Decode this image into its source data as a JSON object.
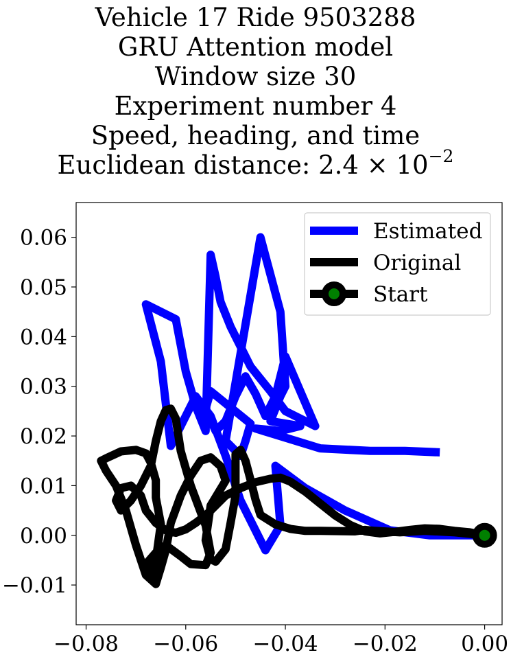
{
  "title_lines": [
    "Vehicle 17 Ride 9503288",
    "GRU Attention model",
    "Window size 30",
    "Experiment number 4",
    "Speed, heading, and time",
    "Euclidean distance: 2.4 × 10"
  ],
  "title_exponent": "−2",
  "chart_data": {
    "type": "line",
    "xlim": [
      -0.082,
      0.0035
    ],
    "ylim": [
      -0.018,
      0.067
    ],
    "xticks": [
      -0.08,
      -0.06,
      -0.04,
      -0.02,
      0.0
    ],
    "xtick_labels": [
      "−0.08",
      "−0.06",
      "−0.04",
      "−0.02",
      "0.00"
    ],
    "yticks": [
      -0.01,
      0.0,
      0.01,
      0.02,
      0.03,
      0.04,
      0.05,
      0.06
    ],
    "ytick_labels": [
      "−0.01",
      "0.00",
      "0.01",
      "0.02",
      "0.03",
      "0.04",
      "0.05",
      "0.06"
    ],
    "grid": false,
    "legend_position": "top-right",
    "series": [
      {
        "name": "Estimated",
        "color": "#0000ff",
        "x": [
          0.0,
          -0.011,
          -0.019,
          -0.028,
          -0.036,
          -0.042,
          -0.041,
          -0.044,
          -0.049,
          -0.052,
          -0.055,
          -0.058,
          -0.063,
          -0.065,
          -0.068,
          -0.062,
          -0.06,
          -0.058,
          -0.056,
          -0.055,
          -0.054,
          -0.053,
          -0.051,
          -0.049,
          -0.047,
          -0.043,
          -0.04,
          -0.036,
          -0.034,
          -0.037,
          -0.04,
          -0.042,
          -0.044,
          -0.046,
          -0.048,
          -0.05,
          -0.052,
          -0.054,
          -0.056,
          -0.055,
          -0.047,
          -0.048,
          -0.049,
          -0.052,
          -0.045,
          -0.041,
          -0.04,
          -0.041,
          -0.043,
          -0.04,
          -0.037,
          -0.041,
          -0.046,
          -0.033,
          -0.023,
          -0.016,
          -0.009
        ],
        "y": [
          0.0,
          0.0,
          0.001,
          0.005,
          0.0095,
          0.014,
          0.002,
          -0.003,
          0.007,
          0.016,
          0.024,
          0.028,
          0.018,
          0.035,
          0.0465,
          0.0435,
          0.033,
          0.026,
          0.021,
          0.0565,
          0.052,
          0.047,
          0.042,
          0.038,
          0.034,
          0.029,
          0.025,
          0.023,
          0.022,
          0.029,
          0.036,
          0.028,
          0.024,
          0.0285,
          0.032,
          0.028,
          0.023,
          0.021,
          0.0255,
          0.029,
          0.0225,
          0.019,
          0.016,
          0.019,
          0.06,
          0.045,
          0.03,
          0.028,
          0.023,
          0.0225,
          0.022,
          0.021,
          0.0215,
          0.0175,
          0.017,
          0.017,
          0.0167
        ]
      },
      {
        "name": "Original",
        "color": "#000000",
        "x": [
          0.0,
          -0.006,
          -0.012,
          -0.017,
          -0.022,
          -0.024,
          -0.026,
          -0.033,
          -0.036,
          -0.039,
          -0.042,
          -0.045,
          -0.046,
          -0.047,
          -0.048,
          -0.049,
          -0.05,
          -0.05,
          -0.05,
          -0.051,
          -0.052,
          -0.054,
          -0.055,
          -0.056,
          -0.055,
          -0.052,
          -0.053,
          -0.055,
          -0.057,
          -0.059,
          -0.061,
          -0.063,
          -0.064,
          -0.065,
          -0.066,
          -0.068,
          -0.07,
          -0.072,
          -0.074,
          -0.076,
          -0.077,
          -0.076,
          -0.073,
          -0.07,
          -0.068,
          -0.067,
          -0.066,
          -0.066,
          -0.065,
          -0.066,
          -0.067,
          -0.068,
          -0.066,
          -0.064,
          -0.061,
          -0.059,
          -0.056,
          -0.055,
          -0.056,
          -0.059,
          -0.061,
          -0.062,
          -0.063,
          -0.064,
          -0.065,
          -0.066,
          -0.067,
          -0.069,
          -0.071,
          -0.073,
          -0.074,
          -0.073,
          -0.071,
          -0.069,
          -0.068,
          -0.066,
          -0.064,
          -0.062,
          -0.06,
          -0.058,
          -0.056,
          -0.054,
          -0.052,
          -0.049,
          -0.046,
          -0.043,
          -0.041,
          -0.039,
          -0.036,
          -0.033,
          -0.03,
          -0.027,
          -0.024,
          -0.021,
          -0.018,
          -0.015,
          -0.012,
          -0.009,
          -0.006,
          -0.003,
          0.0
        ],
        "y": [
          0.0,
          0.0006,
          0.0009,
          0.0006,
          0.0009,
          0.0011,
          0.0008,
          0.0009,
          0.0009,
          0.0013,
          0.0022,
          0.0041,
          0.0072,
          0.0112,
          0.015,
          0.0172,
          0.0163,
          0.0124,
          0.008,
          0.0025,
          -0.0028,
          -0.0053,
          -0.0048,
          -0.001,
          0.006,
          0.011,
          0.0139,
          0.0157,
          0.015,
          0.012,
          0.008,
          0.0025,
          -0.003,
          -0.0065,
          -0.0098,
          -0.008,
          -0.002,
          0.005,
          0.01,
          0.013,
          0.015,
          0.0155,
          0.0169,
          0.0172,
          0.0165,
          0.0146,
          0.0111,
          0.0076,
          0.0023,
          -0.005,
          -0.0085,
          -0.0058,
          -0.0035,
          -0.002,
          -0.0042,
          -0.0058,
          -0.006,
          -0.0035,
          0.002,
          0.01,
          0.017,
          0.0235,
          0.0255,
          0.0252,
          0.023,
          0.019,
          0.014,
          0.01,
          0.007,
          0.005,
          0.007,
          0.0095,
          0.01,
          0.008,
          0.005,
          0.0025,
          0.001,
          0.0005,
          0.0012,
          0.0025,
          0.004,
          0.006,
          0.008,
          0.0095,
          0.0107,
          0.0114,
          0.0116,
          0.0108,
          0.0088,
          0.0064,
          0.004,
          0.0021,
          0.0008,
          0.0004,
          0.0007,
          0.0011,
          0.0014,
          0.0013,
          0.0009,
          0.0006,
          0.0
        ]
      },
      {
        "name": "Start",
        "color": "#000000",
        "marker_color": "#008000",
        "x": [
          0.0
        ],
        "y": [
          0.0
        ]
      }
    ]
  }
}
